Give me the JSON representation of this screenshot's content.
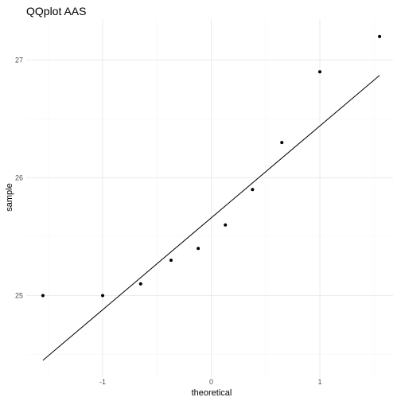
{
  "chart_data": {
    "type": "scatter",
    "title": "QQplot AAS",
    "xlabel": "theoretical",
    "ylabel": "sample",
    "xlim": [
      -1.65,
      1.65
    ],
    "ylim": [
      24.5,
      27.2
    ],
    "xticks": [
      -1,
      0,
      1
    ],
    "yticks": [
      25,
      26,
      27
    ],
    "grid": true,
    "points": [
      {
        "x": -1.55,
        "y": 25.0
      },
      {
        "x": -1.0,
        "y": 25.0
      },
      {
        "x": -0.65,
        "y": 25.1
      },
      {
        "x": -0.37,
        "y": 25.3
      },
      {
        "x": -0.12,
        "y": 25.4
      },
      {
        "x": 0.13,
        "y": 25.6
      },
      {
        "x": 0.38,
        "y": 25.9
      },
      {
        "x": 0.65,
        "y": 26.3
      },
      {
        "x": 1.0,
        "y": 26.9
      },
      {
        "x": 1.55,
        "y": 27.2
      }
    ],
    "reference_line": {
      "x": [
        -1.55,
        1.55
      ],
      "y": [
        24.45,
        26.87
      ]
    }
  }
}
